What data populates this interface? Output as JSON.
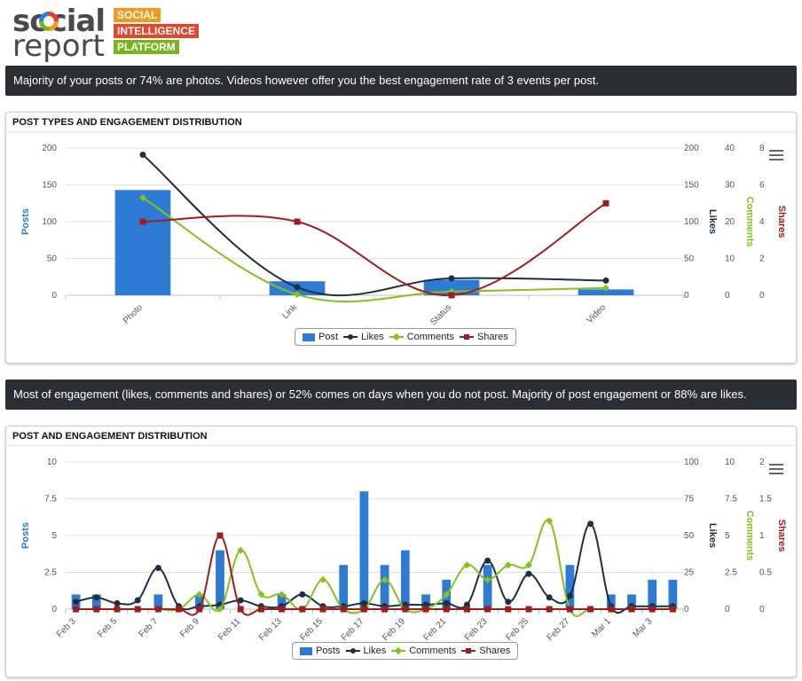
{
  "logo": {
    "word1": "social",
    "word2": "report",
    "tags": [
      "SOCIAL",
      "INTELLIGENCE",
      "PLATFORM"
    ]
  },
  "colors": {
    "posts": "#2e7bd6",
    "likes": "#1c2f45",
    "comments": "#86c11c",
    "shares": "#a11c1c",
    "banner": "#2a2f34"
  },
  "banner1": {
    "text": "Majority of your posts or 74% are photos. Videos however offer you the best engagement rate of 3 events per post."
  },
  "banner2": {
    "text": "Most of engagement (likes, comments and shares) or 52% comes on days when you do not post. Majority of post engagement or 88% are likes."
  },
  "panel1": {
    "title": "POST TYPES AND ENGAGEMENT DISTRIBUTION",
    "menu_icon": "hamburger-menu-icon"
  },
  "panel2": {
    "title": "POST AND ENGAGEMENT DISTRIBUTION",
    "menu_icon": "hamburger-menu-icon"
  },
  "chart_data": [
    {
      "type": "bar",
      "title": "POST TYPES AND ENGAGEMENT DISTRIBUTION",
      "categories": [
        "Photo",
        "Link",
        "Status",
        "Video"
      ],
      "axes": {
        "posts": {
          "label": "Posts",
          "ticks": [
            "200",
            "150",
            "100",
            "50",
            "0"
          ],
          "ylim": [
            0,
            200
          ]
        },
        "likes": {
          "label": "Likes",
          "ticks": [
            "200",
            "150",
            "100",
            "50",
            "0"
          ],
          "ylim": [
            0,
            200
          ]
        },
        "comments": {
          "label": "Comments",
          "ticks": [
            "40",
            "30",
            "20",
            "10",
            "0"
          ],
          "ylim": [
            0,
            40
          ]
        },
        "shares": {
          "label": "Shares",
          "ticks": [
            "8",
            "6",
            "4",
            "2",
            "0"
          ],
          "ylim": [
            0,
            8
          ]
        }
      },
      "series": [
        {
          "name": "Post",
          "type": "bar",
          "axis": "posts",
          "values": [
            143,
            19,
            21,
            8
          ]
        },
        {
          "name": "Likes",
          "type": "line",
          "axis": "likes",
          "values": [
            191,
            11,
            23,
            20
          ]
        },
        {
          "name": "Comments",
          "type": "line",
          "axis": "comments",
          "values": [
            26.5,
            0.2,
            1,
            2
          ]
        },
        {
          "name": "Shares",
          "type": "line",
          "axis": "shares",
          "values": [
            4,
            4,
            0,
            5
          ]
        }
      ],
      "legend": [
        "Post",
        "Likes",
        "Comments",
        "Shares"
      ]
    },
    {
      "type": "bar",
      "title": "POST AND ENGAGEMENT DISTRIBUTION",
      "categories": [
        "Feb 3",
        "Feb 4",
        "Feb 5",
        "Feb 6",
        "Feb 7",
        "Feb 8",
        "Feb 9",
        "Feb 10",
        "Feb 11",
        "Feb 12",
        "Feb 13",
        "Feb 14",
        "Feb 15",
        "Feb 16",
        "Feb 17",
        "Feb 18",
        "Feb 19",
        "Feb 20",
        "Feb 21",
        "Feb 22",
        "Feb 23",
        "Feb 24",
        "Feb 25",
        "Feb 26",
        "Feb 27",
        "Feb 28",
        "Mar 1",
        "Mar 2",
        "Mar 3",
        "Mar 4"
      ],
      "x_tick_labels": [
        "Feb 3",
        "Feb 5",
        "Feb 7",
        "Feb 9",
        "Feb 11",
        "Feb 13",
        "Feb 15",
        "Feb 17",
        "Feb 19",
        "Feb 21",
        "Feb 23",
        "Feb 25",
        "Feb 27",
        "Mar 1",
        "Mar 3"
      ],
      "axes": {
        "posts": {
          "label": "Posts",
          "ticks": [
            "10",
            "7.5",
            "5",
            "2.5",
            "0"
          ],
          "ylim": [
            0,
            10
          ]
        },
        "likes": {
          "label": "Likes",
          "ticks": [
            "100",
            "75",
            "50",
            "25",
            "0"
          ],
          "ylim": [
            0,
            100
          ]
        },
        "comments": {
          "label": "Comments",
          "ticks": [
            "10",
            "7.5",
            "5",
            "2.5",
            "0"
          ],
          "ylim": [
            0,
            10
          ]
        },
        "shares": {
          "label": "Shares",
          "ticks": [
            "2",
            "1.5",
            "1",
            "0.5",
            "0"
          ],
          "ylim": [
            0,
            2
          ]
        }
      },
      "series": [
        {
          "name": "Posts",
          "type": "bar",
          "axis": "posts",
          "values": [
            1,
            1,
            0,
            0,
            1,
            0,
            1,
            4,
            0,
            0,
            1,
            0,
            0,
            3,
            8,
            3,
            4,
            1,
            2,
            0,
            3,
            0,
            0,
            0,
            3,
            0,
            1,
            1,
            2,
            2
          ]
        },
        {
          "name": "Likes",
          "type": "line",
          "axis": "likes",
          "values": [
            5,
            8,
            4,
            6,
            28,
            2,
            2,
            3,
            6,
            2,
            2,
            10,
            2,
            2,
            4,
            2,
            3,
            3,
            4,
            3,
            33,
            5,
            24,
            8,
            9,
            58,
            2,
            2,
            2,
            2
          ]
        },
        {
          "name": "Comments",
          "type": "line",
          "axis": "comments",
          "values": [
            0,
            0,
            0,
            0,
            0,
            0,
            1,
            0,
            4,
            1,
            1,
            0,
            2,
            0,
            0,
            2,
            0,
            0,
            1,
            3,
            2,
            3,
            3,
            6,
            0,
            0,
            0,
            0,
            0,
            0
          ]
        },
        {
          "name": "Shares",
          "type": "line",
          "axis": "shares",
          "values": [
            0,
            0,
            0,
            0,
            0,
            0,
            0,
            1,
            0,
            0,
            0,
            0,
            0,
            0,
            0,
            0,
            0,
            0,
            0,
            0,
            0,
            0,
            0,
            0,
            0,
            0,
            0,
            0,
            0,
            0
          ]
        }
      ],
      "legend": [
        "Posts",
        "Likes",
        "Comments",
        "Shares"
      ]
    }
  ]
}
